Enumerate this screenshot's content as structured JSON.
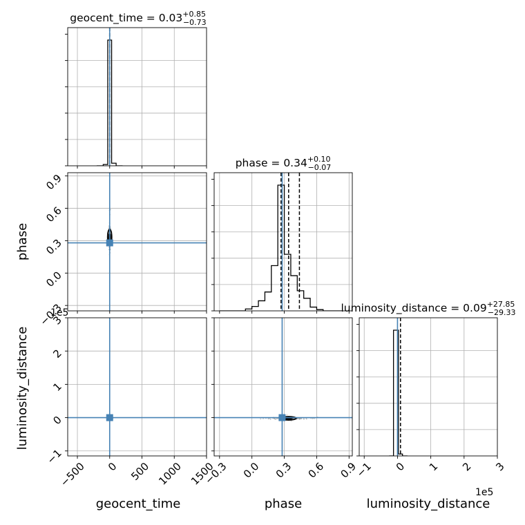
{
  "chart_data": {
    "type": "corner",
    "parameters": [
      "geocent_time",
      "phase",
      "luminosity_distance"
    ],
    "axis_labels": {
      "geocent_time": "geocent_time",
      "phase": "phase",
      "luminosity_distance": "luminosity_distance"
    },
    "truths": {
      "geocent_time": 0,
      "phase": 0.28,
      "luminosity_distance": 0
    },
    "titles": {
      "geocent_time": {
        "name": "geocent_time",
        "median": "0.03",
        "plus": "+0.85",
        "minus": "−0.73"
      },
      "phase": {
        "name": "phase",
        "median": "0.34",
        "plus": "+0.10",
        "minus": "−0.07"
      },
      "luminosity_distance": {
        "name": "luminosity_distance",
        "median": "0.09",
        "plus": "+27.85",
        "minus": "−29.33"
      }
    },
    "quantiles": {
      "geocent_time": [
        -0.7,
        0.03,
        0.88
      ],
      "phase": [
        0.27,
        0.34,
        0.44
      ],
      "luminosity_distance": [
        -29.24,
        0.09,
        27.94
      ]
    },
    "ranges": {
      "geocent_time": [
        -650,
        1500
      ],
      "phase": [
        -0.35,
        0.93
      ],
      "luminosity_distance": [
        -1.15,
        3.0
      ]
    },
    "ticks": {
      "geocent_time": {
        "values": [
          -500,
          0,
          500,
          1000,
          1500
        ],
        "labels": [
          "−500",
          "0",
          "500",
          "1000",
          "1500"
        ]
      },
      "phase": {
        "values": [
          -0.3,
          0.0,
          0.3,
          0.6,
          0.9
        ],
        "labels": [
          "−0.3",
          "0.0",
          "0.3",
          "0.6",
          "0.9"
        ]
      },
      "luminosity_distance": {
        "values": [
          -1,
          0,
          1,
          2,
          3
        ],
        "labels": [
          "−1",
          "0",
          "1",
          "2",
          "3"
        ]
      }
    },
    "scale_factor_text": "1e5",
    "marginals": {
      "geocent_time": {
        "bins": [
          -200,
          -100,
          -30,
          30,
          100,
          200
        ],
        "counts": [
          0,
          1,
          98,
          2,
          0
        ]
      },
      "phase": {
        "bins": [
          -0.3,
          -0.24,
          -0.18,
          -0.12,
          -0.06,
          0.0,
          0.06,
          0.12,
          0.18,
          0.24,
          0.3,
          0.36,
          0.42,
          0.48,
          0.54,
          0.6,
          0.66,
          0.72,
          0.78,
          0.84
        ],
        "counts": [
          0,
          0,
          0,
          0,
          1.5,
          3.5,
          8,
          15,
          36,
          100,
          45,
          28,
          16,
          10,
          3,
          1,
          0,
          0,
          0
        ]
      },
      "luminosity_distance": {
        "bins": [
          -0.25,
          -0.12,
          0.03,
          0.15,
          0.3
        ],
        "counts": [
          0,
          100,
          1.5,
          0
        ]
      }
    },
    "grid": true
  }
}
